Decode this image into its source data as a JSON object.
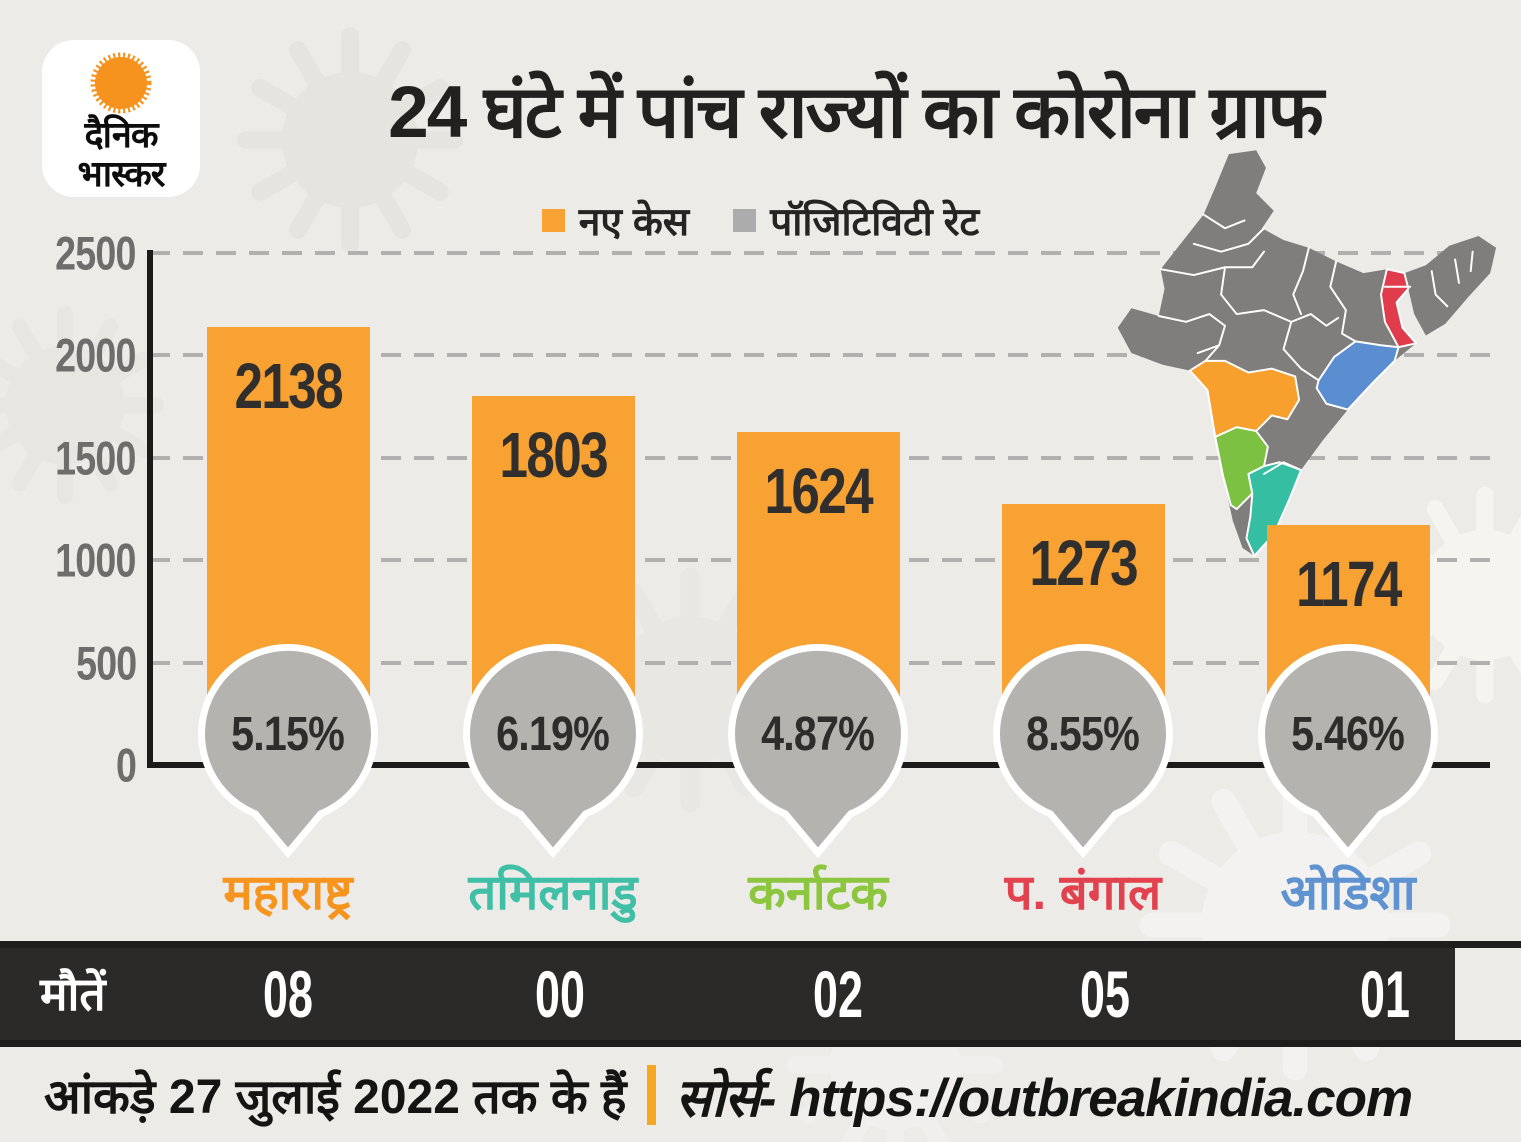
{
  "brand": {
    "logo_line1": "दैनिक",
    "logo_line2": "भास्कर",
    "sun_icon": "orange sunburst"
  },
  "header": {
    "title": "24 घंटे में पांच राज्यों का कोरोना ग्राफ"
  },
  "chart_data": {
    "type": "bar",
    "title": "24 घंटे में पांच राज्यों का कोरोना ग्राफ",
    "categories": [
      "महाराष्ट्र",
      "तमिलनाडु",
      "कर्नाटक",
      "प. बंगाल",
      "ओडिशा"
    ],
    "series": [
      {
        "name": "नए केस",
        "values": [
          2138,
          1803,
          1624,
          1273,
          1174
        ],
        "color": "#F8A233"
      },
      {
        "name": "पॉजिटिविटी रेट",
        "values": [
          5.15,
          6.19,
          4.87,
          8.55,
          5.46
        ],
        "labels": [
          "5.15%",
          "6.19%",
          "4.87%",
          "8.55%",
          "5.46%"
        ],
        "color": "#B5B3B0"
      },
      {
        "name": "मौतें",
        "values": [
          "08",
          "00",
          "02",
          "05",
          "01"
        ]
      }
    ],
    "category_colors": [
      "#F7941E",
      "#3FBFA5",
      "#8CC63F",
      "#E2414E",
      "#5E92D0"
    ],
    "ylim": [
      0,
      2500
    ],
    "yticks": [
      "2500",
      "2000",
      "1500",
      "1000",
      "500",
      "0"
    ],
    "grid": "horizontal dashed",
    "legend_position": "top center"
  },
  "map": {
    "name": "india-states-map",
    "base_color": "#7F7E7C",
    "highlighted": [
      {
        "state": "महाराष्ट्र",
        "color": "#F8A02E"
      },
      {
        "state": "कर्नाटक",
        "color": "#7CC142"
      },
      {
        "state": "तमिलनाडु",
        "color": "#35BEA1"
      },
      {
        "state": "ओडिशा",
        "color": "#5B8ED1"
      },
      {
        "state": "प. बंगाल",
        "color": "#E13C4C"
      }
    ]
  },
  "footer": {
    "note": "आंकड़े 27 जुलाई 2022 तक के हैं",
    "separator": "|",
    "source": "सोर्स- https://outbreakindia.com"
  },
  "colors": {
    "bar_orange": "#F8A233",
    "pin_gray": "#B5B3B0",
    "legend_gray": "#ACACAC",
    "deaths_bar": "#2B2A28",
    "axis_black": "#1C1B1A",
    "grid_gray": "#B2B0AE",
    "background": "#ECEBE8",
    "separator_orange": "#F5A623"
  },
  "decor": {
    "watermark": "coronavirus-silhouettes"
  }
}
